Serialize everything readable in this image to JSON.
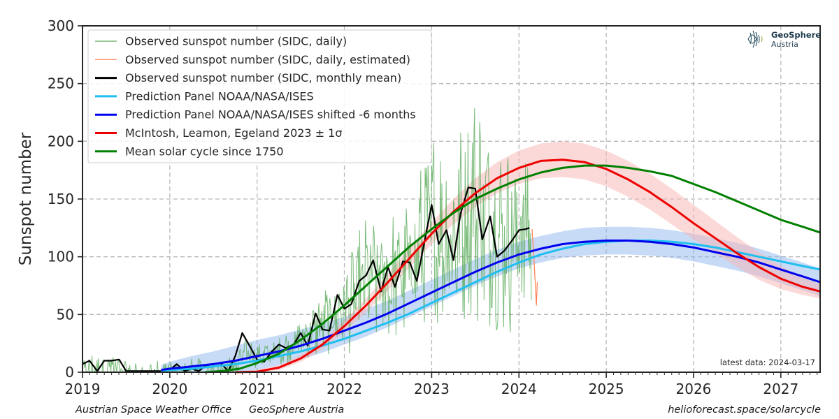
{
  "chart_data": {
    "type": "line",
    "ylabel": "Sunspot number",
    "xlabel": "",
    "xlim": [
      2019.0,
      2027.45
    ],
    "ylim": [
      0,
      300
    ],
    "x_ticks": [
      2019,
      2020,
      2021,
      2022,
      2023,
      2024,
      2025,
      2026,
      2027
    ],
    "y_ticks": [
      0,
      50,
      100,
      150,
      200,
      250,
      300
    ],
    "grid": true,
    "legend_position": "top-left",
    "latest_data_note": "latest data: 2024-03-17",
    "series": [
      {
        "name": "Observed sunspot number (SIDC, daily)",
        "color": "#5aab5a",
        "style": "thin-line",
        "anchors": [
          [
            2019.0,
            5
          ],
          [
            2019.25,
            12
          ],
          [
            2019.5,
            4
          ],
          [
            2019.75,
            2
          ],
          [
            2020.0,
            4
          ],
          [
            2020.25,
            4
          ],
          [
            2020.5,
            6
          ],
          [
            2020.75,
            10
          ],
          [
            2020.9,
            18
          ],
          [
            2021.0,
            14
          ],
          [
            2021.25,
            18
          ],
          [
            2021.5,
            28
          ],
          [
            2021.75,
            42
          ],
          [
            2022.0,
            55
          ],
          [
            2022.25,
            80
          ],
          [
            2022.5,
            78
          ],
          [
            2022.75,
            90
          ],
          [
            2023.0,
            125
          ],
          [
            2023.25,
            115
          ],
          [
            2023.5,
            148
          ],
          [
            2023.75,
            115
          ],
          [
            2024.0,
            118
          ],
          [
            2024.15,
            124
          ]
        ]
      },
      {
        "name": "Observed sunspot number (SIDC, daily, estimated)",
        "color": "#ff7f50",
        "style": "thin-line",
        "x": [
          2024.15,
          2024.17,
          2024.19,
          2024.2,
          2024.21
        ],
        "y": [
          124,
          100,
          72,
          58,
          78
        ]
      },
      {
        "name": "Observed sunspot number (SIDC, monthly mean)",
        "color": "#000000",
        "style": "line",
        "x": [
          2019.0,
          2019.08,
          2019.17,
          2019.25,
          2019.33,
          2019.42,
          2019.5,
          2019.58,
          2019.67,
          2019.75,
          2019.83,
          2019.92,
          2020.0,
          2020.08,
          2020.17,
          2020.25,
          2020.33,
          2020.42,
          2020.5,
          2020.58,
          2020.67,
          2020.75,
          2020.83,
          2020.92,
          2021.0,
          2021.08,
          2021.17,
          2021.25,
          2021.33,
          2021.42,
          2021.5,
          2021.58,
          2021.67,
          2021.75,
          2021.83,
          2021.92,
          2022.0,
          2022.08,
          2022.17,
          2022.25,
          2022.33,
          2022.42,
          2022.5,
          2022.58,
          2022.67,
          2022.75,
          2022.83,
          2022.92,
          2023.0,
          2023.08,
          2023.17,
          2023.25,
          2023.33,
          2023.42,
          2023.5,
          2023.58,
          2023.67,
          2023.75,
          2023.83,
          2023.92,
          2024.0,
          2024.08,
          2024.12
        ],
        "y": [
          7,
          10,
          1,
          10,
          10,
          11,
          1,
          1,
          1,
          1,
          1,
          1,
          2,
          7,
          1,
          3,
          1,
          6,
          7,
          8,
          1,
          14,
          34,
          22,
          11,
          9,
          18,
          24,
          21,
          24,
          34,
          23,
          51,
          37,
          36,
          67,
          55,
          59,
          79,
          84,
          97,
          70,
          91,
          74,
          96,
          95,
          79,
          114,
          145,
          111,
          123,
          97,
          137,
          160,
          159,
          115,
          135,
          100,
          105,
          114,
          123,
          124,
          125
        ]
      },
      {
        "name": "Prediction Panel NOAA/NASA/ISES",
        "color": "#1fbfef",
        "style": "line",
        "x": [
          2019.9,
          2020.0,
          2020.25,
          2020.5,
          2020.75,
          2021.0,
          2021.25,
          2021.5,
          2021.75,
          2022.0,
          2022.25,
          2022.5,
          2022.75,
          2023.0,
          2023.25,
          2023.5,
          2023.75,
          2024.0,
          2024.25,
          2024.5,
          2024.75,
          2025.0,
          2025.25,
          2025.5,
          2025.75,
          2026.0,
          2026.25,
          2026.5,
          2026.75,
          2027.0,
          2027.25,
          2027.45
        ],
        "y": [
          1,
          2,
          3,
          5,
          7,
          10,
          14,
          18,
          23,
          29,
          36,
          43,
          51,
          60,
          69,
          78,
          87,
          95,
          102,
          107,
          111,
          113,
          114,
          114,
          113,
          111,
          108,
          104,
          100,
          96,
          92,
          89
        ]
      },
      {
        "name": "Prediction Panel NOAA/NASA/ISES shifted -6 months",
        "color": "#0000ee",
        "style": "line",
        "band_color": "#8fb8f0",
        "x": [
          2019.9,
          2020.0,
          2020.25,
          2020.5,
          2020.75,
          2021.0,
          2021.25,
          2021.5,
          2021.75,
          2022.0,
          2022.25,
          2022.5,
          2022.75,
          2023.0,
          2023.25,
          2023.5,
          2023.75,
          2024.0,
          2024.25,
          2024.5,
          2024.75,
          2025.0,
          2025.25,
          2025.5,
          2025.75,
          2026.0,
          2026.25,
          2026.5,
          2026.75,
          2027.0,
          2027.25,
          2027.45
        ],
        "y": [
          2,
          3,
          5,
          7,
          10,
          14,
          18,
          23,
          29,
          36,
          43,
          51,
          60,
          69,
          78,
          87,
          95,
          102,
          107,
          111,
          113,
          114,
          114,
          113,
          111,
          108,
          104,
          100,
          95,
          89,
          83,
          78
        ],
        "lower": [
          0,
          0,
          0,
          0,
          0,
          2,
          6,
          11,
          17,
          24,
          31,
          39,
          48,
          57,
          66,
          75,
          83,
          90,
          95,
          99,
          101,
          102,
          102,
          101,
          99,
          96,
          92,
          88,
          83,
          77,
          71,
          66
        ],
        "upper": [
          6,
          9,
          14,
          18,
          23,
          28,
          32,
          37,
          42,
          48,
          55,
          62,
          71,
          80,
          89,
          98,
          106,
          113,
          118,
          122,
          125,
          126,
          126,
          125,
          123,
          120,
          116,
          112,
          107,
          101,
          95,
          90
        ]
      },
      {
        "name": "McIntosh, Leamon, Egeland 2023 ± 1σ",
        "color": "#ee0000",
        "style": "line",
        "band_color": "#f8b4b4",
        "x": [
          2020.75,
          2021.0,
          2021.25,
          2021.5,
          2021.75,
          2022.0,
          2022.25,
          2022.5,
          2022.75,
          2023.0,
          2023.25,
          2023.5,
          2023.75,
          2024.0,
          2024.25,
          2024.5,
          2024.75,
          2025.0,
          2025.25,
          2025.5,
          2025.75,
          2026.0,
          2026.25,
          2026.5,
          2026.75,
          2027.0,
          2027.25,
          2027.45
        ],
        "y": [
          0,
          0.5,
          4,
          12,
          24,
          40,
          58,
          78,
          99,
          120,
          139,
          155,
          168,
          177,
          183,
          184,
          182,
          176,
          167,
          156,
          143,
          129,
          116,
          103,
          91,
          81,
          74,
          70
        ],
        "lower": [
          0,
          0,
          2,
          9,
          20,
          35,
          52,
          71,
          91,
          111,
          128,
          143,
          155,
          163,
          168,
          169,
          167,
          161,
          152,
          141,
          128,
          115,
          103,
          91,
          80,
          72,
          67,
          64
        ],
        "upper": [
          1,
          2,
          6,
          15,
          28,
          45,
          64,
          85,
          108,
          130,
          150,
          168,
          182,
          192,
          198,
          200,
          198,
          192,
          183,
          172,
          159,
          145,
          131,
          117,
          104,
          92,
          82,
          76
        ]
      },
      {
        "name": "Mean solar cycle since 1750",
        "color": "#008000",
        "style": "line",
        "x": [
          2020.4,
          2020.6,
          2020.8,
          2021.0,
          2021.25,
          2021.5,
          2021.75,
          2022.0,
          2022.25,
          2022.5,
          2022.75,
          2023.0,
          2023.25,
          2023.5,
          2023.75,
          2024.0,
          2024.25,
          2024.5,
          2024.75,
          2025.0,
          2025.25,
          2025.5,
          2025.75,
          2026.0,
          2026.25,
          2026.5,
          2026.75,
          2027.0,
          2027.25,
          2027.45
        ],
        "y": [
          0,
          1,
          3,
          8,
          16,
          28,
          42,
          58,
          75,
          92,
          109,
          124,
          138,
          150,
          159,
          167,
          173,
          177,
          179,
          179,
          177,
          174,
          170,
          163,
          156,
          148,
          140,
          132,
          126,
          121
        ]
      }
    ]
  },
  "logo": {
    "line1": "GeoSphere",
    "line2": "Austria"
  },
  "footer": {
    "left": "Austrian Space Weather Office",
    "middle": "GeoSphere Austria",
    "right": "helioforecast.space/solarcycle"
  }
}
